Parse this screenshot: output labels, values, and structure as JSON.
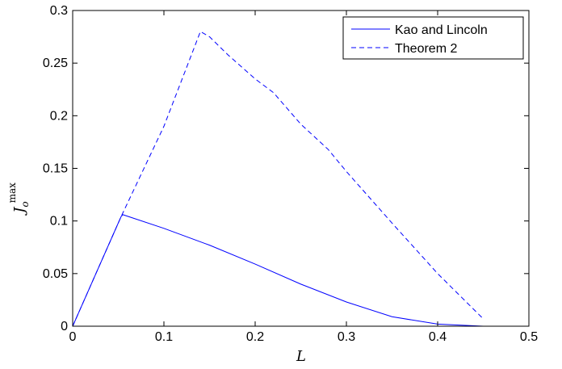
{
  "chart_data": {
    "type": "line",
    "title": "",
    "xlabel": "L",
    "ylabel": {
      "base": "J",
      "sub": "o",
      "sup": "max"
    },
    "xlim": [
      0,
      0.5
    ],
    "ylim": [
      0,
      0.3
    ],
    "xticks": [
      0,
      0.1,
      0.2,
      0.3,
      0.4,
      0.5
    ],
    "xtick_labels": [
      "0",
      "0.1",
      "0.2",
      "0.3",
      "0.4",
      "0.5"
    ],
    "yticks": [
      0,
      0.05,
      0.1,
      0.15,
      0.2,
      0.25,
      0.3
    ],
    "ytick_labels": [
      "0",
      "0.05",
      "0.1",
      "0.15",
      "0.2",
      "0.25",
      "0.3"
    ],
    "grid": false,
    "legend_position": "top-right",
    "series": [
      {
        "name": "Kao and Lincoln",
        "style": "solid",
        "color": "#0000ff",
        "x": [
          0,
          0.053,
          0.055,
          0.1,
          0.15,
          0.2,
          0.25,
          0.3,
          0.35,
          0.4,
          0.45
        ],
        "y": [
          0,
          0.104,
          0.106,
          0.093,
          0.077,
          0.059,
          0.04,
          0.023,
          0.009,
          0.002,
          0
        ]
      },
      {
        "name": "Theorem 2",
        "style": "dashed",
        "color": "#0000ff",
        "x": [
          0,
          0.053,
          0.1,
          0.14,
          0.15,
          0.17,
          0.2,
          0.22,
          0.25,
          0.28,
          0.3,
          0.35,
          0.4,
          0.45
        ],
        "y": [
          0,
          0.104,
          0.19,
          0.28,
          0.275,
          0.258,
          0.235,
          0.222,
          0.192,
          0.168,
          0.147,
          0.098,
          0.05,
          0.007
        ]
      }
    ]
  }
}
